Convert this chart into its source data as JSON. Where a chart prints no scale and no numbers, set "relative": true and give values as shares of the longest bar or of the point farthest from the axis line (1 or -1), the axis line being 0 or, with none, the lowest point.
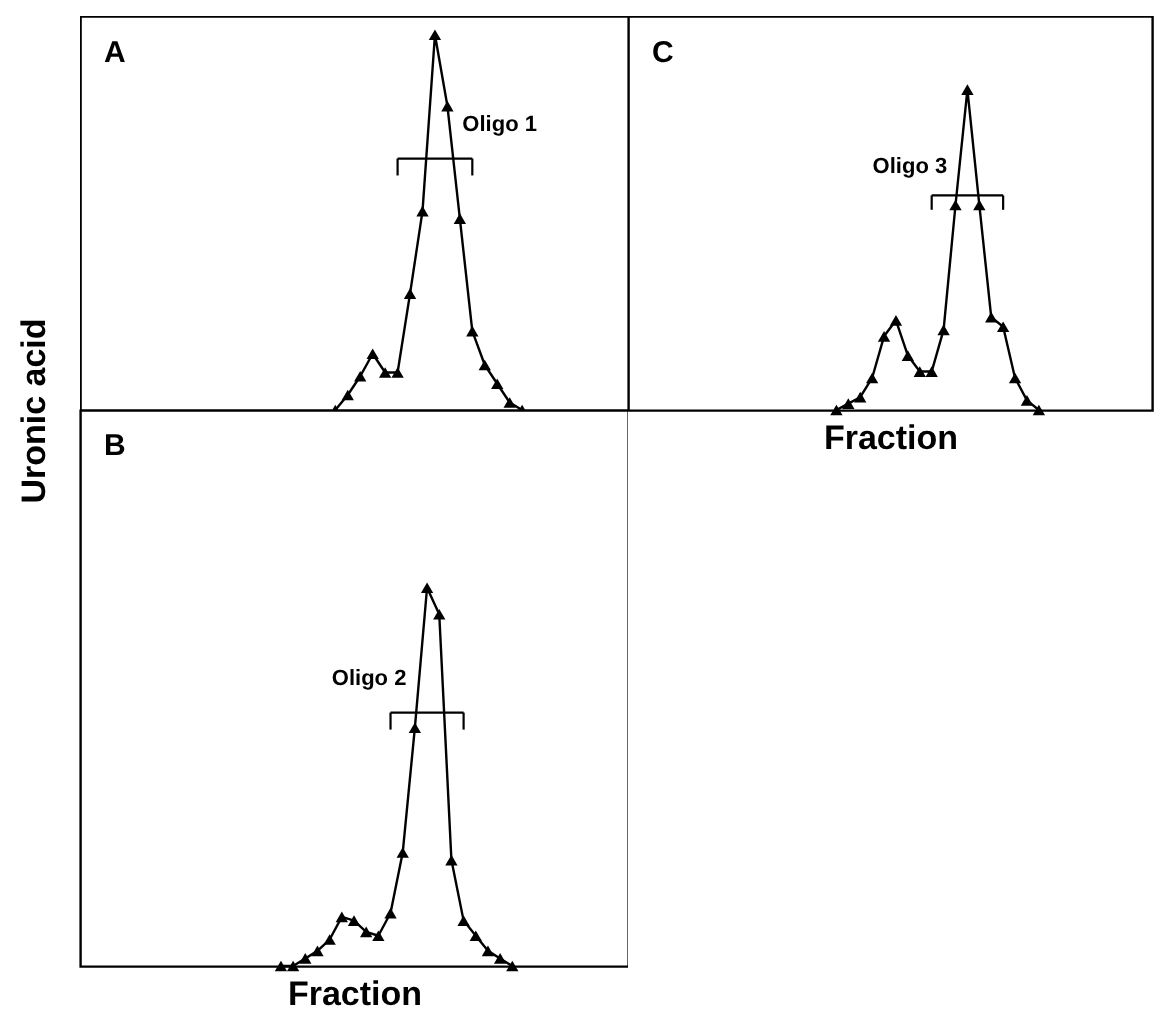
{
  "chart_data": [
    {
      "type": "line",
      "title": "A",
      "relative": true,
      "marker": "triangle",
      "annotations": [
        "Oligo 1"
      ],
      "categories": [
        null,
        null,
        null,
        null,
        null,
        null,
        null,
        null,
        null,
        null,
        null,
        null,
        null,
        null,
        null,
        null,
        null,
        null,
        null,
        null,
        null,
        null,
        null,
        null,
        null,
        null,
        null,
        null,
        null,
        null,
        null,
        null,
        null,
        null,
        null,
        null,
        null,
        null,
        null,
        null,
        null,
        null,
        null,
        null
      ],
      "series": [
        {
          "color": "#000000",
          "values": [
            null,
            null,
            null,
            null,
            null,
            null,
            null,
            null,
            null,
            null,
            null,
            null,
            null,
            null,
            null,
            null,
            null,
            null,
            null,
            null,
            0,
            0.04,
            0.09,
            0.15,
            0.1,
            0.1,
            0.31,
            0.53,
            1,
            0.81,
            0.51,
            0.21,
            0.12,
            0.07,
            0.02,
            0,
            null,
            null,
            null,
            null,
            null,
            null,
            null,
            null
          ]
        }
      ]
    },
    {
      "type": "line",
      "title": "C",
      "xlabel": "Fraction",
      "relative": true,
      "marker": "triangle",
      "annotations": [
        "Oligo 3"
      ],
      "categories": [
        null,
        null,
        null,
        null,
        null,
        null,
        null,
        null,
        null,
        null,
        null,
        null,
        null,
        null,
        null,
        null,
        null,
        null,
        null,
        null,
        null,
        null,
        null,
        null,
        null,
        null,
        null,
        null,
        null,
        null,
        null,
        null,
        null,
        null,
        null,
        null,
        null,
        null,
        null,
        null,
        null,
        null,
        null,
        null
      ],
      "series": [
        {
          "color": "#000000",
          "values": [
            null,
            null,
            null,
            null,
            null,
            null,
            null,
            null,
            null,
            null,
            null,
            null,
            null,
            null,
            null,
            null,
            null,
            0,
            0.02,
            0.04,
            0.1,
            0.23,
            0.28,
            0.17,
            0.12,
            0.12,
            0.25,
            0.64,
            1,
            0.64,
            0.29,
            0.26,
            0.1,
            0.03,
            0,
            null,
            null,
            null,
            null,
            null,
            null,
            null,
            null,
            null
          ]
        }
      ]
    },
    {
      "type": "line",
      "title": "B",
      "xlabel": "Fraction",
      "ylabel": "Uronic acid",
      "relative": true,
      "marker": "triangle",
      "annotations": [
        "Oligo 2"
      ],
      "categories": [
        null,
        null,
        null,
        null,
        null,
        null,
        null,
        null,
        null,
        null,
        null,
        null,
        null,
        null,
        null,
        null,
        null,
        null,
        null,
        null,
        null,
        null,
        null,
        null,
        null,
        null,
        null,
        null,
        null,
        null,
        null,
        null,
        null,
        null,
        null,
        null,
        null,
        null,
        null,
        null,
        null,
        null,
        null,
        null,
        null
      ],
      "series": [
        {
          "color": "#000000",
          "values": [
            null,
            null,
            null,
            null,
            null,
            null,
            null,
            null,
            null,
            null,
            null,
            null,
            null,
            null,
            null,
            null,
            0,
            0,
            0.02,
            0.04,
            0.07,
            0.13,
            0.12,
            0.09,
            0.08,
            0.14,
            0.3,
            0.63,
            1,
            0.93,
            0.28,
            0.12,
            0.08,
            0.04,
            0.02,
            0,
            null,
            null,
            null,
            null,
            null,
            null,
            null,
            null,
            null
          ]
        }
      ]
    }
  ]
}
